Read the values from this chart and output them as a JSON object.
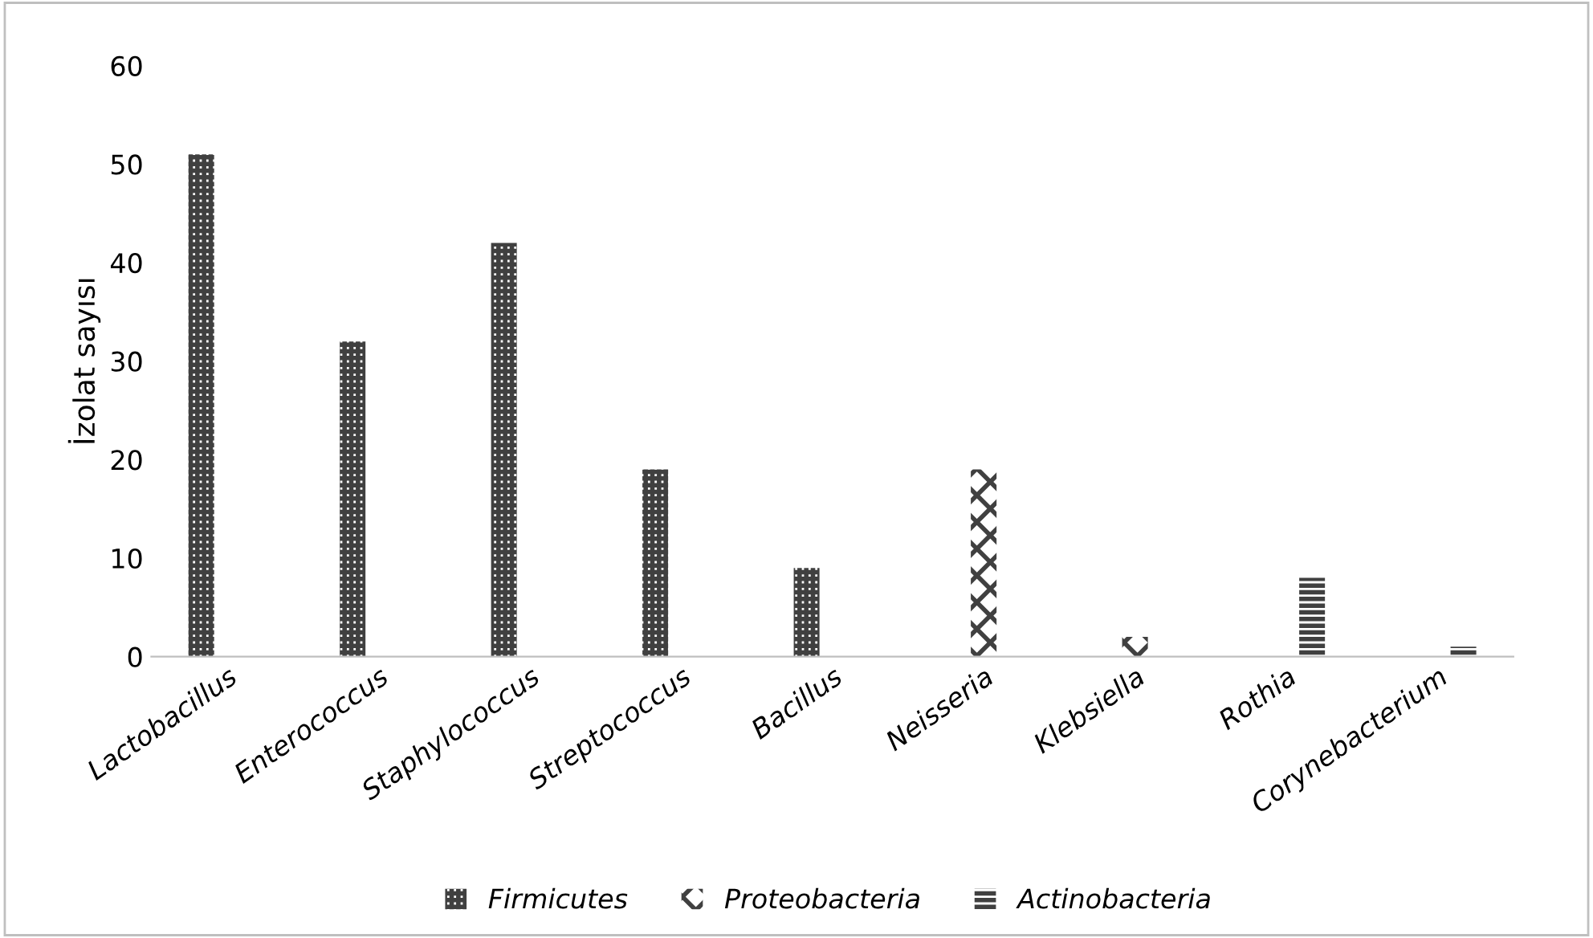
{
  "chart_data": {
    "type": "bar",
    "ylabel": "İzolat sayısı",
    "categories": [
      "Lactobacillus",
      "Enterococcus",
      "Staphylococcus",
      "Streptococcus",
      "Bacillus",
      "Neisseria",
      "Klebsiella",
      "Rothia",
      "Corynebacterium"
    ],
    "series": [
      {
        "name": "Firmicutes",
        "color": "#404040",
        "values": [
          51,
          32,
          42,
          19,
          9,
          null,
          null,
          null,
          null
        ]
      },
      {
        "name": "Proteobacteria",
        "color": "#404040",
        "values": [
          null,
          null,
          null,
          null,
          null,
          19,
          2,
          null,
          null
        ]
      },
      {
        "name": "Actinobacteria",
        "color": "#404040",
        "values": [
          null,
          null,
          null,
          null,
          null,
          null,
          null,
          8,
          1
        ]
      }
    ],
    "ylim": [
      0,
      60
    ],
    "yticks": [
      0,
      10,
      20,
      30,
      40,
      50,
      60
    ],
    "grid": false,
    "legend": "bottom"
  }
}
